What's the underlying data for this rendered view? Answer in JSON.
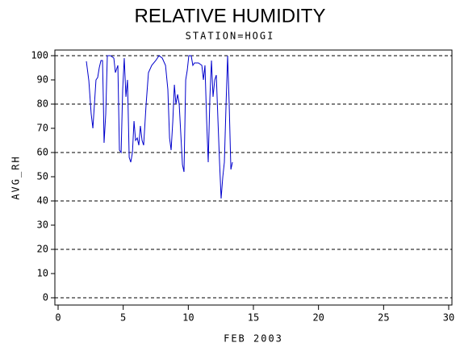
{
  "chart_data": {
    "type": "line",
    "title": "RELATIVE HUMIDITY",
    "subtitle": "STATION=HOGI",
    "y_label": "AVG_RH",
    "x_label": "FEB 2003",
    "xlim": [
      0,
      30
    ],
    "xticks": [
      0,
      5,
      10,
      15,
      20,
      25,
      30
    ],
    "ylim": [
      0,
      100
    ],
    "yticks": [
      0,
      10,
      20,
      30,
      40,
      50,
      60,
      70,
      80,
      90,
      100
    ],
    "grid_values": [
      0,
      20,
      40,
      60,
      80,
      100
    ],
    "series": [
      {
        "name": "AVG_RH",
        "color": "#0000cc",
        "x": [
          2.17,
          2.36,
          2.54,
          2.67,
          2.79,
          2.91,
          3.04,
          3.16,
          3.29,
          3.41,
          3.47,
          3.53,
          3.66,
          3.78,
          4.03,
          4.28,
          4.4,
          4.59,
          4.71,
          4.84,
          4.96,
          5.08,
          5.21,
          5.33,
          5.46,
          5.58,
          5.71,
          5.83,
          5.95,
          6.08,
          6.2,
          6.32,
          6.45,
          6.57,
          6.76,
          6.94,
          7.19,
          7.5,
          7.75,
          8.0,
          8.25,
          8.43,
          8.56,
          8.68,
          8.81,
          8.93,
          9.05,
          9.18,
          9.3,
          9.42,
          9.55,
          9.67,
          9.8,
          9.92,
          10.04,
          10.22,
          10.35,
          10.47,
          10.78,
          11.04,
          11.16,
          11.28,
          11.41,
          11.53,
          11.66,
          11.78,
          11.9,
          12.03,
          12.15,
          12.28,
          12.4,
          12.52,
          12.65,
          12.77,
          12.9,
          13.02,
          13.14,
          13.27,
          13.39
        ],
        "values": [
          97.7,
          89.7,
          76,
          70,
          80,
          90,
          91,
          95,
          98,
          98,
          83,
          64,
          76,
          100,
          100,
          99,
          93,
          96,
          61,
          60,
          86,
          99,
          83,
          90,
          58,
          56,
          60,
          73,
          65,
          66,
          63,
          71,
          65,
          63,
          80,
          93,
          96,
          98,
          100,
          99,
          96,
          86,
          66,
          61,
          73,
          88,
          80,
          84,
          80,
          68,
          55,
          52,
          90,
          94,
          100,
          100,
          96,
          97,
          97,
          96,
          90,
          96,
          73,
          56,
          83,
          98,
          83,
          90,
          92,
          73,
          56,
          41,
          50,
          56,
          80,
          100,
          80,
          53,
          56
        ]
      }
    ]
  }
}
